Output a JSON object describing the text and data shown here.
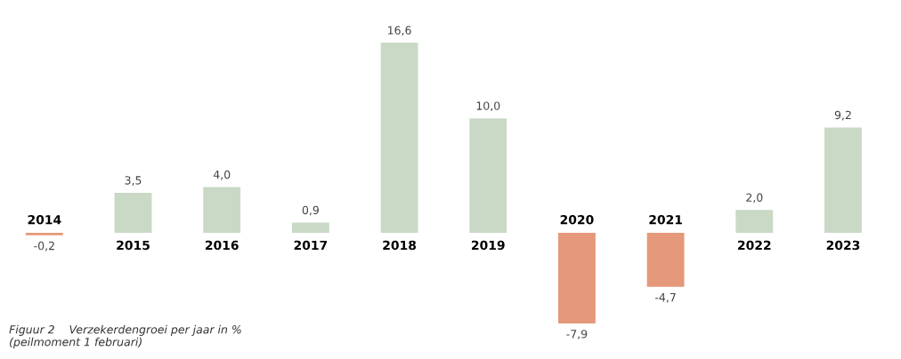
{
  "chart_data": {
    "type": "bar",
    "categories": [
      "2014",
      "2015",
      "2016",
      "2017",
      "2018",
      "2019",
      "2020",
      "2021",
      "2022",
      "2023"
    ],
    "values": [
      -0.2,
      3.5,
      4.0,
      0.9,
      16.6,
      10.0,
      -7.9,
      -4.7,
      2.0,
      9.2
    ],
    "value_labels": [
      "-0,2",
      "3,5",
      "4,0",
      "0,9",
      "16,6",
      "10,0",
      "-7,9",
      "-4,7",
      "2,0",
      "9,2"
    ],
    "colors": [
      "#e5987a",
      "#c9d9c6",
      "#c9d9c6",
      "#c9d9c6",
      "#c9d9c6",
      "#c9d9c6",
      "#e5987a",
      "#e5987a",
      "#c9d9c6",
      "#c9d9c6"
    ],
    "data_labels": true,
    "annotations": [
      "Figuur 2    Verzekerdengroei per jaar in %\n(peilmoment 1 februari)"
    ],
    "grid": false,
    "legend": false
  }
}
